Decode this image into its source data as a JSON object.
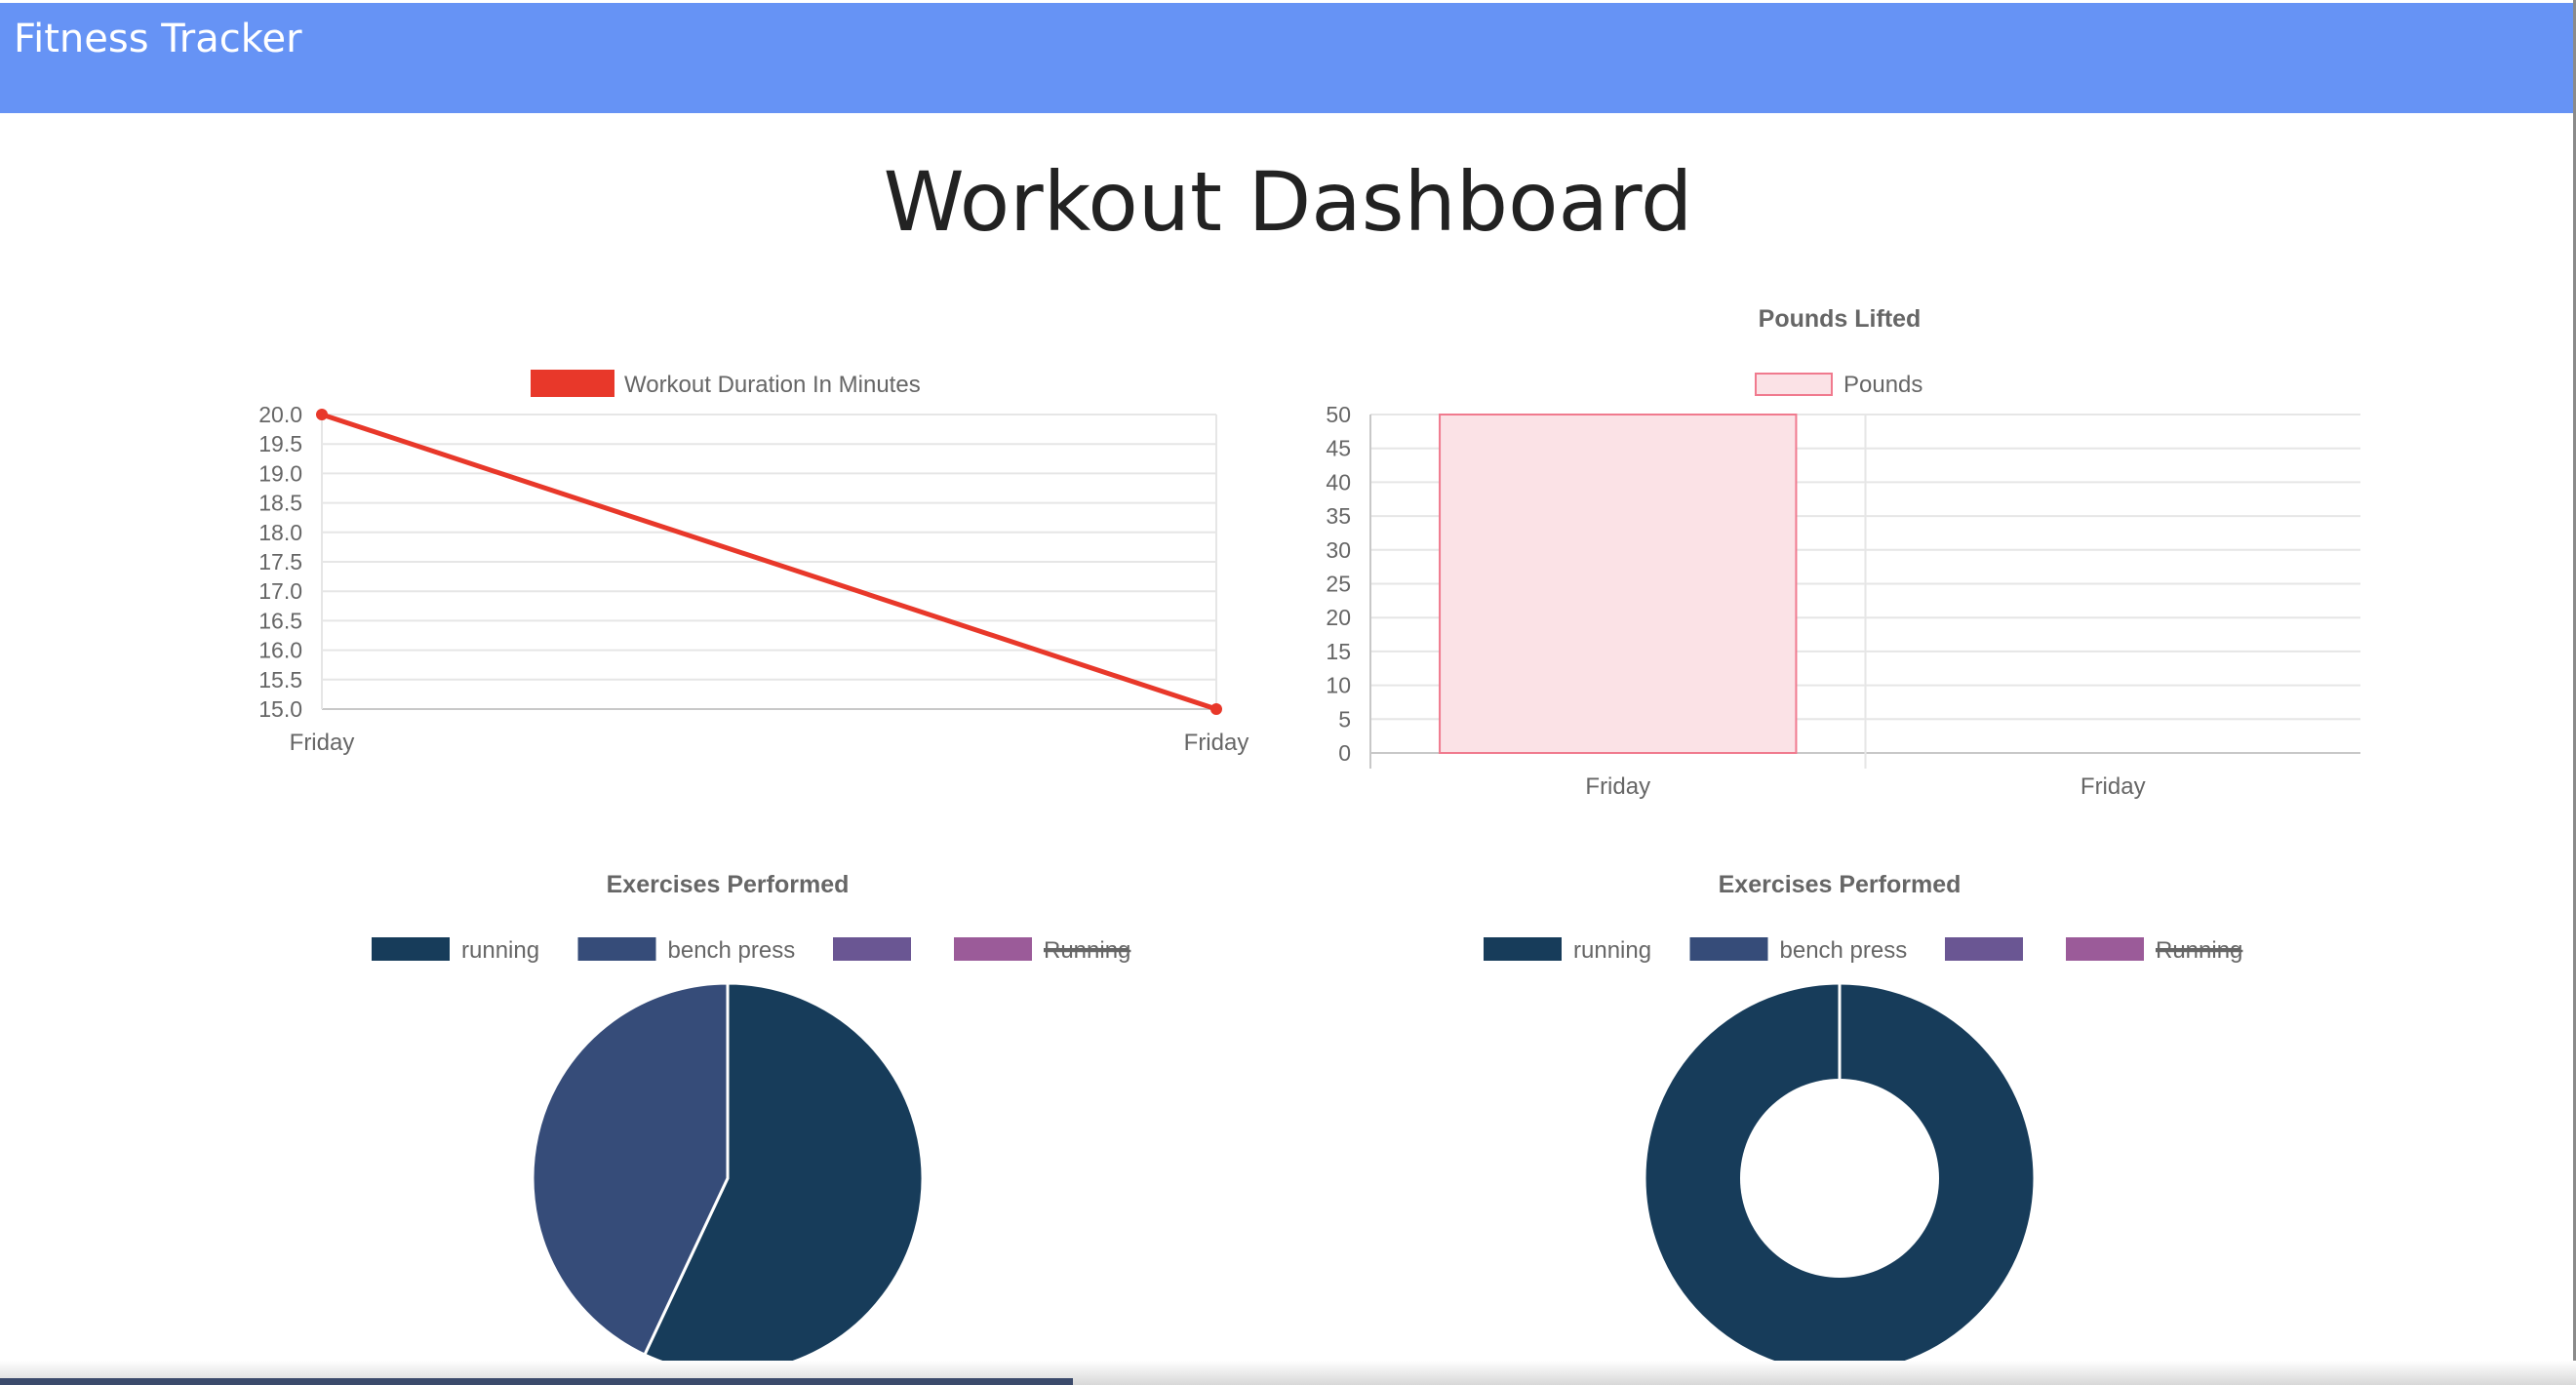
{
  "app": {
    "brand": "Fitness Tracker",
    "page_title": "Workout Dashboard"
  },
  "colors": {
    "navbar": "#6693f5",
    "duration_line": "#e8382a",
    "pounds_fill": "#fbe2e6",
    "pounds_border": "#f07a8e",
    "pie": [
      "#173c5a",
      "#364c79",
      "#6a5693",
      "#9b5b99"
    ]
  },
  "chart_data": [
    {
      "type": "line",
      "title": "",
      "legend": [
        "Workout Duration In Minutes"
      ],
      "legend_placement": "top",
      "categories": [
        "Friday",
        "Friday"
      ],
      "series": [
        {
          "name": "Workout Duration In Minutes",
          "values": [
            20,
            15
          ]
        }
      ],
      "ylim": [
        15,
        20
      ],
      "yticks": [
        "20.0",
        "19.5",
        "19.0",
        "18.5",
        "18.0",
        "17.5",
        "17.0",
        "16.5",
        "16.0",
        "15.5",
        "15.0"
      ],
      "grid": true
    },
    {
      "type": "bar",
      "title": "Pounds Lifted",
      "legend": [
        "Pounds"
      ],
      "legend_placement": "top",
      "categories": [
        "Friday",
        "Friday"
      ],
      "series": [
        {
          "name": "Pounds",
          "values": [
            50,
            0
          ]
        }
      ],
      "ylim": [
        0,
        50
      ],
      "yticks": [
        "50",
        "45",
        "40",
        "35",
        "30",
        "25",
        "20",
        "15",
        "10",
        "5",
        "0"
      ],
      "grid": true
    },
    {
      "type": "pie",
      "title": "Exercises Performed",
      "legend": [
        "running",
        "bench press",
        "",
        "Running"
      ],
      "legend_hidden": [
        false,
        false,
        false,
        true
      ],
      "legend_placement": "top",
      "values": [
        57,
        43,
        0,
        0
      ]
    },
    {
      "type": "pie",
      "title": "Exercises Performed",
      "subtype": "doughnut",
      "legend": [
        "running",
        "bench press",
        "",
        "Running"
      ],
      "legend_hidden": [
        false,
        false,
        false,
        true
      ],
      "legend_placement": "top",
      "values": [
        100,
        0,
        0,
        0
      ]
    }
  ]
}
